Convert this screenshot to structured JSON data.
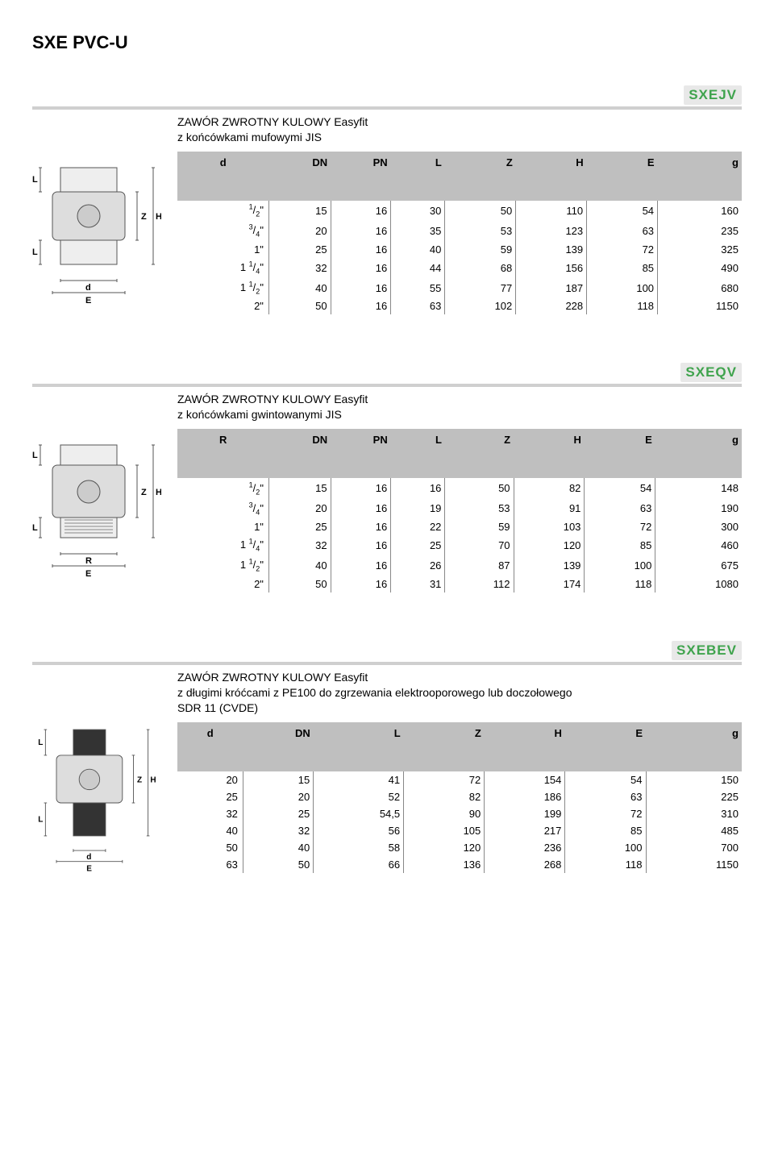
{
  "page_title": "SXE PVC-U",
  "sections": [
    {
      "code": "SXEJV",
      "desc_line1": "ZAWÓR ZWROTNY KULOWY Easyfit",
      "desc_line2": "z końcówkami mufowymi JIS",
      "table": {
        "columns": [
          "d",
          "DN",
          "PN",
          "L",
          "Z",
          "H",
          "E",
          "g"
        ],
        "rows": [
          [
            "1/2\"",
            "15",
            "16",
            "30",
            "50",
            "110",
            "54",
            "160"
          ],
          [
            "3/4\"",
            "20",
            "16",
            "35",
            "53",
            "123",
            "63",
            "235"
          ],
          [
            "1\"",
            "25",
            "16",
            "40",
            "59",
            "139",
            "72",
            "325"
          ],
          [
            "1 1/4\"",
            "32",
            "16",
            "44",
            "68",
            "156",
            "85",
            "490"
          ],
          [
            "1 1/2\"",
            "40",
            "16",
            "55",
            "77",
            "187",
            "100",
            "680"
          ],
          [
            "2\"",
            "50",
            "16",
            "63",
            "102",
            "228",
            "118",
            "1150"
          ]
        ]
      },
      "diagram_labels": [
        "L",
        "Z",
        "H",
        "L",
        "d",
        "E"
      ]
    },
    {
      "code": "SXEQV",
      "desc_line1": "ZAWÓR ZWROTNY KULOWY Easyfit",
      "desc_line2": "z końcówkami gwintowanymi JIS",
      "table": {
        "columns": [
          "R",
          "DN",
          "PN",
          "L",
          "Z",
          "H",
          "E",
          "g"
        ],
        "rows": [
          [
            "1/2\"",
            "15",
            "16",
            "16",
            "50",
            "82",
            "54",
            "148"
          ],
          [
            "3/4\"",
            "20",
            "16",
            "19",
            "53",
            "91",
            "63",
            "190"
          ],
          [
            "1\"",
            "25",
            "16",
            "22",
            "59",
            "103",
            "72",
            "300"
          ],
          [
            "1 1/4\"",
            "32",
            "16",
            "25",
            "70",
            "120",
            "85",
            "460"
          ],
          [
            "1 1/2\"",
            "40",
            "16",
            "26",
            "87",
            "139",
            "100",
            "675"
          ],
          [
            "2\"",
            "50",
            "16",
            "31",
            "112",
            "174",
            "118",
            "1080"
          ]
        ]
      },
      "diagram_labels": [
        "L",
        "Z",
        "H",
        "L",
        "R",
        "E"
      ]
    },
    {
      "code": "SXEBEV",
      "desc_line1": "ZAWÓR ZWROTNY KULOWY Easyfit",
      "desc_line2": "z długimi króćcami z PE100 do zgrzewania elektrooporowego lub doczołowego",
      "desc_line3": "SDR 11 (CVDE)",
      "table": {
        "columns": [
          "d",
          "DN",
          "L",
          "Z",
          "H",
          "E",
          "g"
        ],
        "rows": [
          [
            "20",
            "15",
            "41",
            "72",
            "154",
            "54",
            "150"
          ],
          [
            "25",
            "20",
            "52",
            "82",
            "186",
            "63",
            "225"
          ],
          [
            "32",
            "25",
            "54,5",
            "90",
            "199",
            "72",
            "310"
          ],
          [
            "40",
            "32",
            "56",
            "105",
            "217",
            "85",
            "485"
          ],
          [
            "50",
            "40",
            "58",
            "120",
            "236",
            "100",
            "700"
          ],
          [
            "63",
            "50",
            "66",
            "136",
            "268",
            "118",
            "1150"
          ]
        ]
      },
      "diagram_labels": [
        "L",
        "Z",
        "H",
        "L",
        "d",
        "E"
      ]
    }
  ],
  "colors": {
    "code_green": "#3fa34d",
    "header_gray": "#bfbfbf",
    "bar_gray": "#cfcfcf"
  }
}
